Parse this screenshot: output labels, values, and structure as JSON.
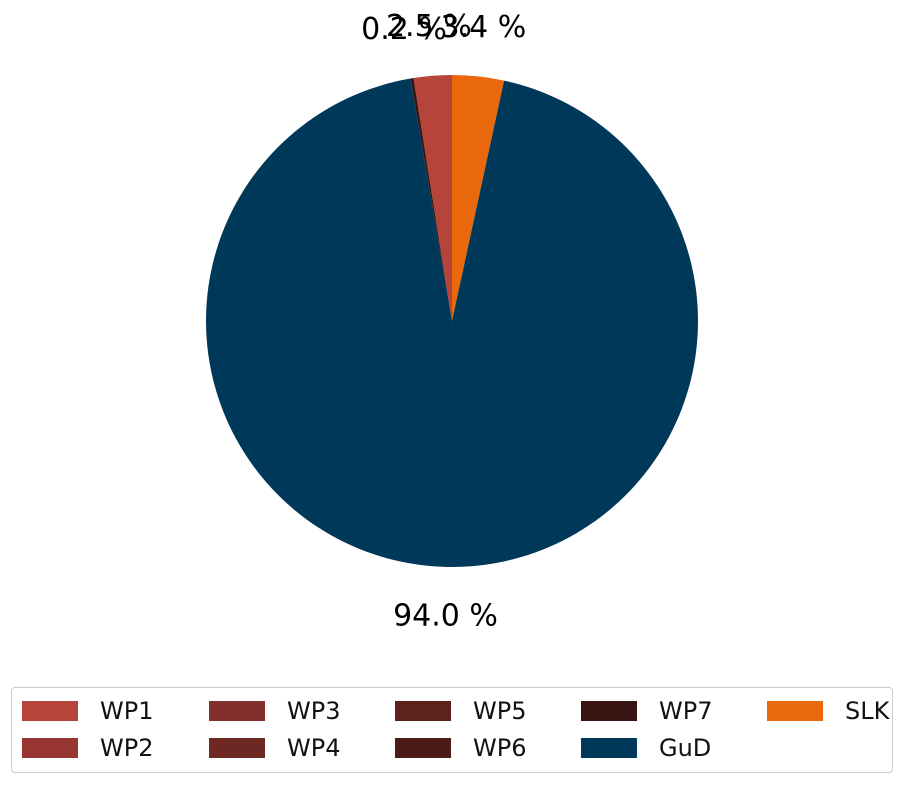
{
  "chart_data": {
    "type": "pie",
    "slices": [
      {
        "label": "WP1",
        "value": 2.5,
        "color": "#b5443b",
        "pct_label": "2.5 %"
      },
      {
        "label": "WP2",
        "value": 0.0,
        "color": "#973530",
        "pct_label": ""
      },
      {
        "label": "WP3",
        "value": 0.0,
        "color": "#82302b",
        "pct_label": ""
      },
      {
        "label": "WP4",
        "value": 0.0,
        "color": "#6e2823",
        "pct_label": ""
      },
      {
        "label": "WP5",
        "value": 0.0,
        "color": "#5d221e",
        "pct_label": ""
      },
      {
        "label": "WP6",
        "value": 0.0,
        "color": "#4b1b18",
        "pct_label": ""
      },
      {
        "label": "WP7",
        "value": 0.2,
        "color": "#381513",
        "pct_label": "0.2 %"
      },
      {
        "label": "GuD",
        "value": 94.0,
        "color": "#00385a",
        "pct_label": "94.0 %"
      },
      {
        "label": "SLK",
        "value": 3.4,
        "color": "#e8680b",
        "pct_label": "3.4 %"
      }
    ],
    "legend": {
      "placement": "bottom",
      "columns": 5,
      "entries": [
        "WP1",
        "WP2",
        "WP3",
        "WP4",
        "WP5",
        "WP6",
        "WP7",
        "GuD",
        "SLK"
      ]
    }
  }
}
